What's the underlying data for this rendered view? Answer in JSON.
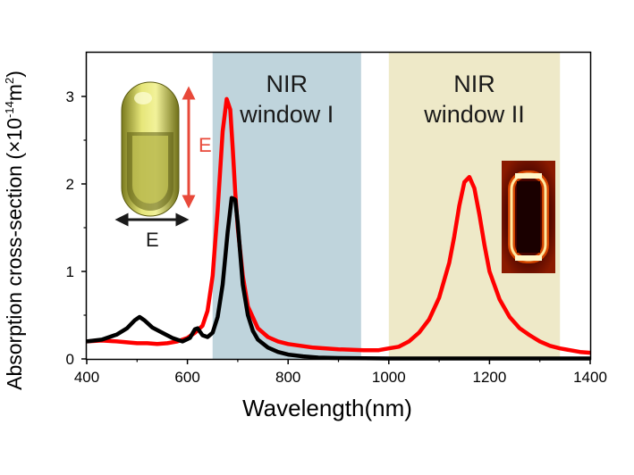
{
  "chart_data": {
    "type": "line",
    "title": "",
    "xlabel": "Wavelength(nm)",
    "ylabel": "Absorption cross-section (×10",
    "ylabel_exp": "-14",
    "ylabel_unit": "m",
    "ylabel_unit_exp": "2",
    "ylabel_close": ")",
    "xlim": [
      400,
      1400
    ],
    "ylim": [
      0,
      3.5
    ],
    "xticks": [
      400,
      600,
      800,
      1000,
      1200,
      1400
    ],
    "yticks": [
      0,
      1,
      2,
      3
    ],
    "grid": false,
    "bands": [
      {
        "label_line1": "NIR",
        "label_line2": "window I",
        "x_range": [
          650,
          945
        ],
        "color": "#bfd4dc"
      },
      {
        "label_line1": "NIR",
        "label_line2": "window II",
        "x_range": [
          1000,
          1340
        ],
        "color": "#eee9c8"
      }
    ],
    "series": [
      {
        "color": "#ff0000",
        "x": [
          400,
          430,
          460,
          480,
          500,
          520,
          540,
          560,
          580,
          600,
          615,
          630,
          640,
          650,
          660,
          670,
          678,
          685,
          690,
          695,
          700,
          710,
          720,
          740,
          760,
          780,
          800,
          850,
          900,
          950,
          980,
          1000,
          1020,
          1040,
          1060,
          1080,
          1100,
          1120,
          1130,
          1140,
          1150,
          1160,
          1170,
          1180,
          1190,
          1200,
          1220,
          1240,
          1260,
          1280,
          1300,
          1320,
          1340,
          1360,
          1380,
          1400
        ],
        "values": [
          0.2,
          0.21,
          0.2,
          0.19,
          0.18,
          0.18,
          0.17,
          0.18,
          0.2,
          0.24,
          0.3,
          0.38,
          0.55,
          0.95,
          1.7,
          2.6,
          2.97,
          2.85,
          2.4,
          1.9,
          1.5,
          0.95,
          0.6,
          0.35,
          0.25,
          0.2,
          0.17,
          0.13,
          0.11,
          0.1,
          0.1,
          0.12,
          0.14,
          0.2,
          0.3,
          0.45,
          0.7,
          1.1,
          1.4,
          1.75,
          2.02,
          2.08,
          1.95,
          1.65,
          1.3,
          1.0,
          0.68,
          0.48,
          0.35,
          0.27,
          0.2,
          0.15,
          0.12,
          0.1,
          0.08,
          0.07
        ]
      },
      {
        "color": "#000000",
        "x": [
          400,
          430,
          460,
          480,
          495,
          505,
          515,
          530,
          550,
          570,
          590,
          605,
          615,
          620,
          630,
          640,
          650,
          660,
          670,
          680,
          688,
          695,
          700,
          705,
          710,
          720,
          730,
          740,
          760,
          780,
          800,
          830,
          860,
          900,
          1000,
          1100,
          1200,
          1300,
          1400
        ],
        "values": [
          0.2,
          0.22,
          0.28,
          0.35,
          0.44,
          0.48,
          0.44,
          0.36,
          0.3,
          0.24,
          0.2,
          0.24,
          0.34,
          0.35,
          0.27,
          0.25,
          0.3,
          0.48,
          0.85,
          1.45,
          1.84,
          1.82,
          1.55,
          1.2,
          0.85,
          0.5,
          0.32,
          0.22,
          0.13,
          0.08,
          0.05,
          0.03,
          0.015,
          0.01,
          0.005,
          0.005,
          0.005,
          0.005,
          0.005
        ]
      }
    ],
    "annotations": {
      "horizontal_polarization": "E",
      "vertical_polarization": "E"
    }
  }
}
